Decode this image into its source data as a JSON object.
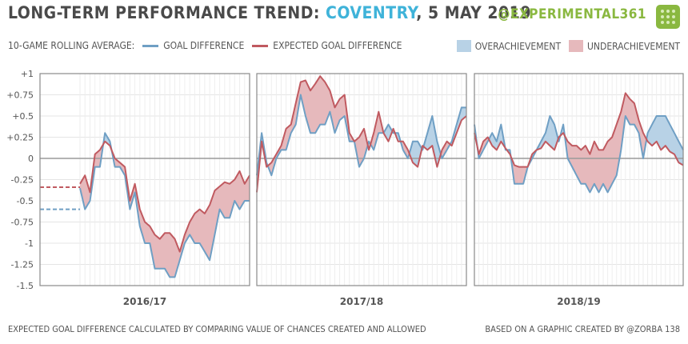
{
  "header": {
    "title_prefix": "LONG-TERM PERFORMANCE TREND: ",
    "team": "COVENTRY",
    "title_suffix": ", 5 MAY 2019",
    "handle": "@EXPERIMENTAL361"
  },
  "legend": {
    "label": "10-GAME ROLLING AVERAGE:",
    "gd": "GOAL DIFFERENCE",
    "xgd": "EXPECTED GOAL DIFFERENCE",
    "over": "OVERACHIEVEMENT",
    "under": "UNDERACHIEVEMENT"
  },
  "footer": {
    "left": "EXPECTED GOAL DIFFERENCE CALCULATED BY COMPARING VALUE OF CHANCES CREATED AND ALLOWED",
    "right": "BASED ON A GRAPHIC CREATED BY @ZORBA 138"
  },
  "colors": {
    "gd": "#6f9fc4",
    "xgd": "#c05a60",
    "over_fill": "#b8d2e6",
    "under_fill": "#e6b9bc"
  },
  "chart_data": {
    "type": "line",
    "ylim": [
      -1.5,
      1
    ],
    "yticks": [
      "+1",
      "+0.75",
      "+0.5",
      "+0.25",
      "0",
      "-0.25",
      "-0.5",
      "-0.75",
      "-1",
      "-1.25",
      "-1.5"
    ],
    "panels": [
      {
        "season": "2016/17",
        "prior_gd": -0.6,
        "prior_xgd": -0.34,
        "gd": [
          -0.35,
          -0.6,
          -0.5,
          -0.1,
          -0.1,
          0.3,
          0.2,
          -0.1,
          -0.1,
          -0.2,
          -0.6,
          -0.4,
          -0.8,
          -1,
          -1,
          -1.3,
          -1.3,
          -1.3,
          -1.4,
          -1.4,
          -1.2,
          -1,
          -0.9,
          -1,
          -1,
          -1.1,
          -1.2,
          -0.9,
          -0.6,
          -0.7,
          -0.7,
          -0.5,
          -0.6,
          -0.5,
          -0.5
        ],
        "xgd": [
          -0.3,
          -0.2,
          -0.4,
          0.05,
          0.1,
          0.2,
          0.15,
          0,
          -0.05,
          -0.1,
          -0.5,
          -0.3,
          -0.6,
          -0.75,
          -0.8,
          -0.9,
          -0.95,
          -0.88,
          -0.88,
          -0.95,
          -1.1,
          -0.9,
          -0.75,
          -0.65,
          -0.6,
          -0.65,
          -0.55,
          -0.38,
          -0.33,
          -0.28,
          -0.3,
          -0.25,
          -0.15,
          -0.3,
          -0.2
        ]
      },
      {
        "season": "2017/18",
        "gd": [
          -0.2,
          0.3,
          -0.05,
          -0.2,
          0,
          0.1,
          0.1,
          0.3,
          0.4,
          0.75,
          0.5,
          0.3,
          0.3,
          0.4,
          0.4,
          0.55,
          0.3,
          0.45,
          0.5,
          0.2,
          0.2,
          -0.1,
          0,
          0.2,
          0.1,
          0.3,
          0.3,
          0.4,
          0.3,
          0.3,
          0.1,
          0,
          0.2,
          0.2,
          0.1,
          0.3,
          0.5,
          0.2,
          0,
          0.1,
          0.2,
          0.4,
          0.6,
          0.6
        ],
        "xgd": [
          -0.4,
          0.2,
          -0.1,
          -0.05,
          0.05,
          0.15,
          0.35,
          0.4,
          0.65,
          0.9,
          0.92,
          0.8,
          0.88,
          0.97,
          0.9,
          0.8,
          0.6,
          0.7,
          0.75,
          0.3,
          0.2,
          0.25,
          0.35,
          0.1,
          0.3,
          0.55,
          0.3,
          0.2,
          0.35,
          0.2,
          0.2,
          0.1,
          -0.05,
          -0.1,
          0.15,
          0.1,
          0.15,
          -0.1,
          0.1,
          0.2,
          0.15,
          0.3,
          0.45,
          0.5
        ]
      },
      {
        "season": "2018/19",
        "gd": [
          0.4,
          0,
          0.1,
          0.2,
          0.3,
          0.2,
          0.4,
          0.1,
          0.1,
          -0.3,
          -0.3,
          -0.3,
          -0.1,
          0,
          0.1,
          0.2,
          0.3,
          0.5,
          0.4,
          0.2,
          0.4,
          0,
          -0.1,
          -0.2,
          -0.3,
          -0.3,
          -0.4,
          -0.3,
          -0.4,
          -0.3,
          -0.4,
          -0.3,
          -0.2,
          0.1,
          0.5,
          0.4,
          0.4,
          0.3,
          0,
          0.3,
          0.4,
          0.5,
          0.5,
          0.5,
          0.4,
          0.3,
          0.2,
          0.1
        ],
        "xgd": [
          0.3,
          0.05,
          0.2,
          0.25,
          0.15,
          0.1,
          0.2,
          0.12,
          0.05,
          -0.08,
          -0.1,
          -0.1,
          -0.1,
          0.05,
          0.1,
          0.12,
          0.2,
          0.15,
          0.1,
          0.25,
          0.3,
          0.2,
          0.15,
          0.15,
          0.1,
          0.15,
          0.05,
          0.2,
          0.1,
          0.1,
          0.2,
          0.25,
          0.4,
          0.55,
          0.77,
          0.7,
          0.65,
          0.45,
          0.3,
          0.2,
          0.15,
          0.2,
          0.1,
          0.15,
          0.08,
          0.05,
          -0.05,
          -0.08
        ]
      }
    ]
  }
}
